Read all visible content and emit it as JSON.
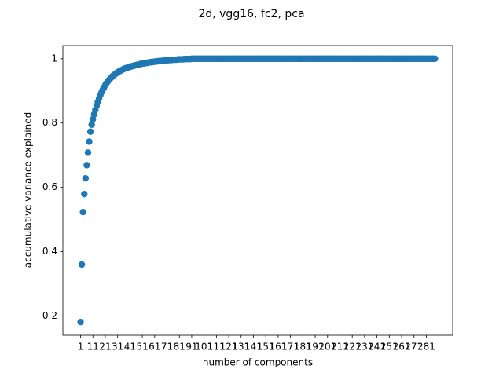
{
  "chart_data": {
    "type": "scatter",
    "title": "2d, vgg16, fc2, pca",
    "x_label": "number of components",
    "y_label": "accumulative variance explained",
    "color": "#1f77b4",
    "x": [
      1,
      2,
      3,
      4,
      5,
      6,
      7,
      8,
      9,
      10,
      11,
      12,
      13,
      14,
      15,
      16,
      17,
      18,
      19,
      20,
      21,
      22,
      23,
      24,
      25,
      26,
      27,
      28,
      29,
      30,
      31,
      32,
      33,
      34,
      35,
      36,
      37,
      38,
      39,
      40,
      41,
      42,
      43,
      44,
      45,
      46,
      47,
      48,
      49,
      50,
      51,
      52,
      53,
      54,
      55,
      56,
      57,
      58,
      59,
      60,
      61,
      62,
      63,
      64,
      65,
      66,
      67,
      68,
      69,
      70,
      71,
      72,
      73,
      74,
      75,
      76,
      77,
      78,
      79,
      80,
      81,
      82,
      83,
      84,
      85,
      86,
      87,
      88,
      89,
      90,
      91,
      92,
      93,
      94,
      95,
      96,
      97,
      98,
      99,
      100,
      101,
      102,
      103,
      104,
      105,
      106,
      107,
      108,
      109,
      110,
      111,
      112,
      113,
      114,
      115,
      116,
      117,
      118,
      119,
      120,
      121,
      122,
      123,
      124,
      125,
      126,
      127,
      128,
      129,
      130,
      131,
      132,
      133,
      134,
      135,
      136,
      137,
      138,
      139,
      140,
      141,
      142,
      143,
      144,
      145,
      146,
      147,
      148,
      149,
      150,
      151,
      152,
      153,
      154,
      155,
      156,
      157,
      158,
      159,
      160,
      161,
      162,
      163,
      164,
      165,
      166,
      167,
      168,
      169,
      170,
      171,
      172,
      173,
      174,
      175,
      176,
      177,
      178,
      179,
      180,
      181,
      182,
      183,
      184,
      185,
      186,
      187,
      188,
      189,
      190,
      191,
      192,
      193,
      194,
      195,
      196,
      197,
      198,
      199,
      200,
      201,
      202,
      203,
      204,
      205,
      206,
      207,
      208,
      209,
      210,
      211,
      212,
      213,
      214,
      215,
      216,
      217,
      218,
      219,
      220,
      221,
      222,
      223,
      224,
      225,
      226,
      227,
      228,
      229,
      230,
      231,
      232,
      233,
      234,
      235,
      236,
      237,
      238,
      239,
      240,
      241,
      242,
      243,
      244,
      245,
      246,
      247,
      248,
      249,
      250,
      251,
      252,
      253,
      254,
      255,
      256,
      257,
      258,
      259,
      260,
      261,
      262,
      263,
      264,
      265,
      266,
      267,
      268,
      269,
      270,
      271,
      272,
      273,
      274,
      275,
      276,
      277,
      278,
      279,
      280,
      281,
      282,
      283,
      284,
      285,
      286,
      287,
      288
    ],
    "values": [
      0.181,
      0.36,
      0.523,
      0.579,
      0.628,
      0.669,
      0.708,
      0.742,
      0.773,
      0.795,
      0.812,
      0.827,
      0.841,
      0.854,
      0.866,
      0.877,
      0.887,
      0.896,
      0.904,
      0.911,
      0.918,
      0.924,
      0.929,
      0.934,
      0.938,
      0.942,
      0.946,
      0.949,
      0.952,
      0.955,
      0.958,
      0.96,
      0.962,
      0.964,
      0.966,
      0.968,
      0.97,
      0.971,
      0.972,
      0.974,
      0.975,
      0.976,
      0.977,
      0.978,
      0.979,
      0.98,
      0.981,
      0.982,
      0.983,
      0.984,
      0.985,
      0.985,
      0.986,
      0.987,
      0.987,
      0.988,
      0.989,
      0.989,
      0.99,
      0.99,
      0.991,
      0.991,
      0.992,
      0.992,
      0.993,
      0.993,
      0.993,
      0.994,
      0.994,
      0.995,
      0.995,
      0.995,
      0.996,
      0.996,
      0.996,
      0.997,
      0.997,
      0.997,
      0.997,
      0.998,
      0.998,
      0.998,
      0.998,
      0.998,
      0.999,
      0.999,
      0.999,
      0.999,
      0.999,
      0.999,
      1,
      1,
      1,
      1,
      1,
      1,
      1,
      1,
      1,
      1,
      1,
      1,
      1,
      1,
      1,
      1,
      1,
      1,
      1,
      1,
      1,
      1,
      1,
      1,
      1,
      1,
      1,
      1,
      1,
      1,
      1,
      1,
      1,
      1,
      1,
      1,
      1,
      1,
      1,
      1,
      1,
      1,
      1,
      1,
      1,
      1,
      1,
      1,
      1,
      1,
      1,
      1,
      1,
      1,
      1,
      1,
      1,
      1,
      1,
      1,
      1,
      1,
      1,
      1,
      1,
      1,
      1,
      1,
      1,
      1,
      1,
      1,
      1,
      1,
      1,
      1,
      1,
      1,
      1,
      1,
      1,
      1,
      1,
      1,
      1,
      1,
      1,
      1,
      1,
      1,
      1,
      1,
      1,
      1,
      1,
      1,
      1,
      1,
      1,
      1,
      1,
      1,
      1,
      1,
      1,
      1,
      1,
      1,
      1,
      1,
      1,
      1,
      1,
      1,
      1,
      1,
      1,
      1,
      1,
      1,
      1,
      1,
      1,
      1,
      1,
      1,
      1,
      1,
      1,
      1,
      1,
      1,
      1,
      1,
      1,
      1,
      1,
      1,
      1,
      1,
      1,
      1,
      1,
      1,
      1,
      1,
      1,
      1,
      1,
      1,
      1,
      1,
      1,
      1,
      1,
      1,
      1,
      1,
      1,
      1,
      1,
      1,
      1,
      1,
      1,
      1,
      1,
      1,
      1,
      1,
      1,
      1,
      1,
      1,
      1,
      1,
      1,
      1,
      1,
      1,
      1,
      1,
      1,
      1,
      1,
      1,
      1,
      1,
      1,
      1,
      1,
      1,
      1,
      1,
      1,
      1,
      1,
      1
    ],
    "xlim": [
      -13.35,
      302.35
    ],
    "ylim": [
      0.14,
      1.041
    ],
    "xticks": [
      1,
      11,
      21,
      31,
      41,
      51,
      61,
      71,
      81,
      91,
      101,
      111,
      121,
      131,
      141,
      151,
      161,
      171,
      181,
      191,
      201,
      211,
      221,
      231,
      241,
      251,
      261,
      271,
      281
    ],
    "yticks": [
      0.2,
      0.4,
      0.6,
      0.8,
      1.0
    ]
  }
}
